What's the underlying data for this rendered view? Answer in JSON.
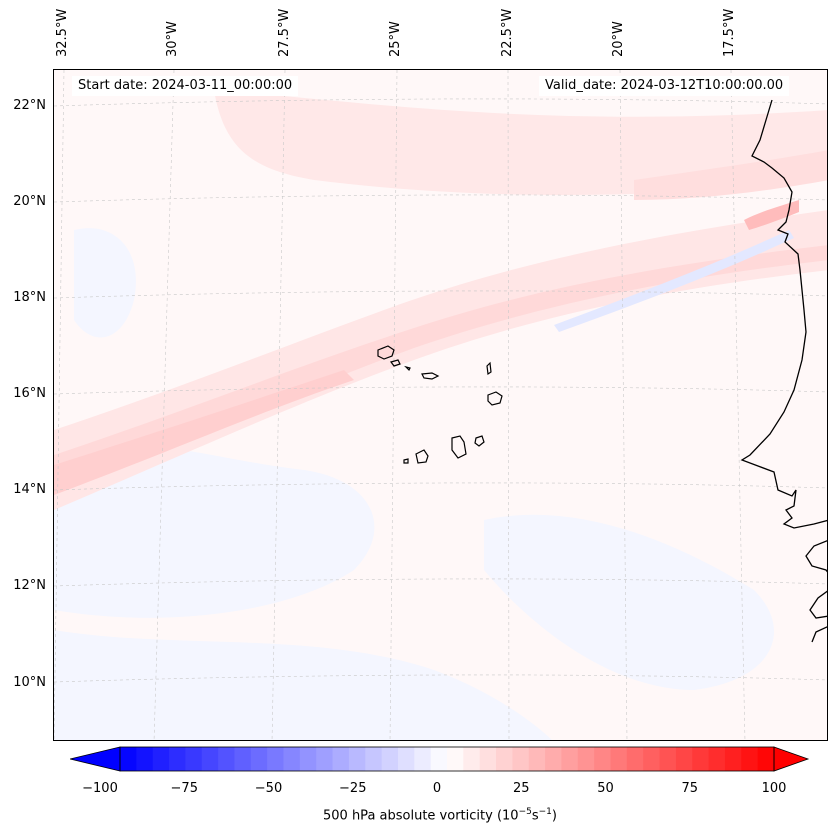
{
  "map": {
    "start_date": "Start date: 2024-03-11_00:00:00",
    "valid_date": "Valid_date: 2024-03-12T10:00:00.00",
    "lon_labels": [
      "32.5°W",
      "30°W",
      "27.5°W",
      "25°W",
      "22.5°W",
      "20°W",
      "17.5°W"
    ],
    "lat_labels": [
      "22°N",
      "20°N",
      "18°N",
      "16°N",
      "14°N",
      "12°N",
      "10°N"
    ],
    "features": [
      "cape-verde-islands",
      "west-africa-coastline"
    ]
  },
  "colorbar": {
    "label_prefix": "500 hPa absolute vorticity (10",
    "label_exp1": "−5",
    "label_mid": "s",
    "label_exp2": "−1",
    "label_suffix": ")",
    "ticks": [
      "−100",
      "−75",
      "−50",
      "−25",
      "0",
      "25",
      "50",
      "75",
      "100"
    ],
    "min": -100,
    "max": 100,
    "colormap": "bwr",
    "low_color": "#0000ff",
    "mid_color": "#ffffff",
    "high_color": "#ff0000"
  }
}
